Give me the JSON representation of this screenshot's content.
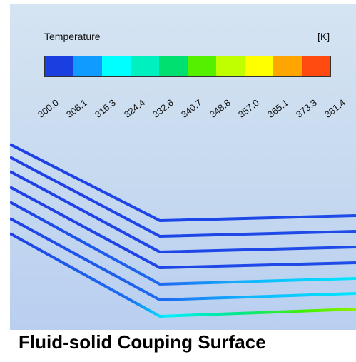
{
  "legend": {
    "title": "Temperature",
    "unit": "[K]",
    "colors": [
      "#1a3fe0",
      "#0f9bff",
      "#00ffff",
      "#00f0c0",
      "#00e070",
      "#55f000",
      "#c0ff00",
      "#ffff00",
      "#ffa500",
      "#ff4a10"
    ],
    "ticks": [
      "300.0",
      "308.1",
      "316.3",
      "324.4",
      "332.6",
      "340.7",
      "348.8",
      "357.0",
      "365.1",
      "373.3",
      "381.4"
    ]
  },
  "caption": "Fluid-solid Couping Surface"
}
